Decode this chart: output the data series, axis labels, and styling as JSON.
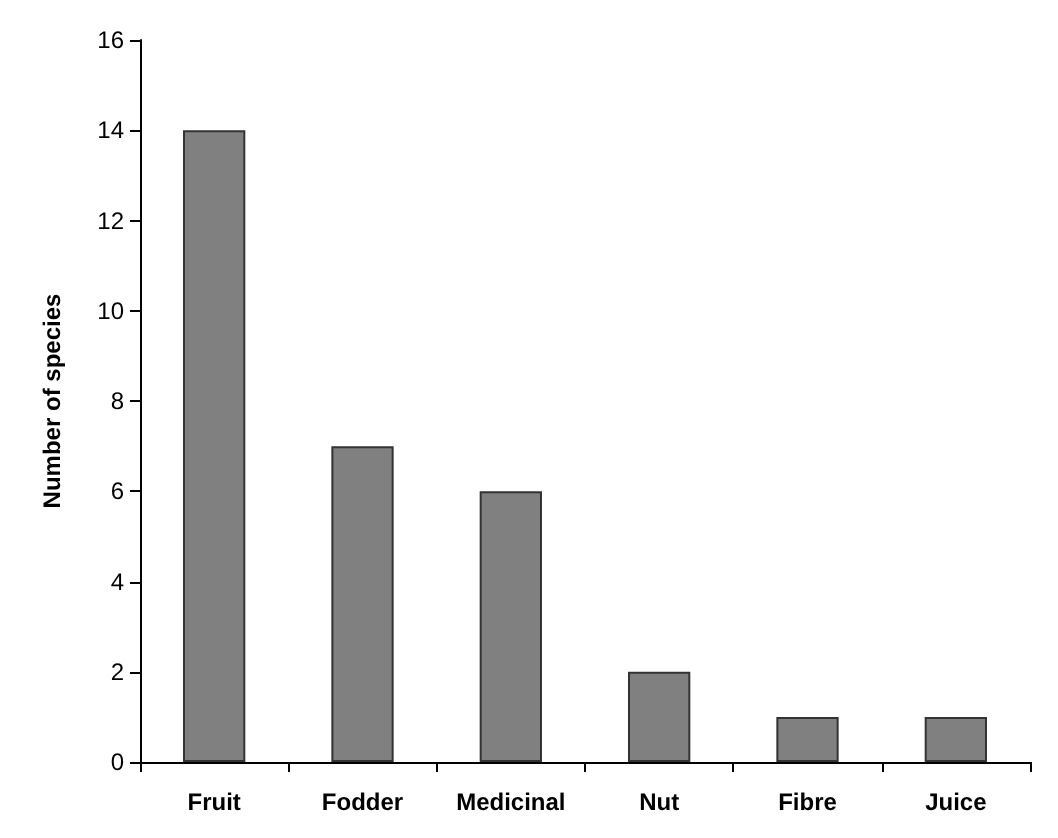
{
  "chart_data": {
    "type": "bar",
    "ylabel": "Number of species",
    "categories": [
      "Fruit",
      "Fodder",
      "Medicinal",
      "Nut",
      "Fibre",
      "Juice"
    ],
    "values": [
      14,
      7,
      6,
      2,
      1,
      1
    ],
    "color": "#808080",
    "ylim": [
      0,
      16
    ],
    "yticks": [
      0,
      2,
      4,
      6,
      8,
      10,
      12,
      14,
      16
    ],
    "grid": false
  }
}
